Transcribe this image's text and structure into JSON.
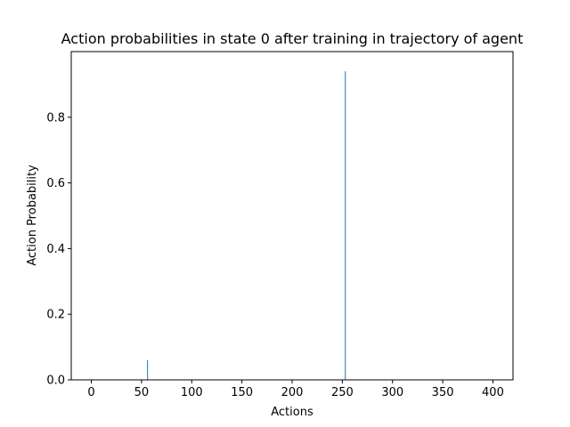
{
  "chart_data": {
    "type": "bar",
    "title": "Action probabilities in state 0 after training in trajectory of agent",
    "xlabel": "Actions",
    "ylabel": "Action Probability",
    "xlim": [
      -20,
      420
    ],
    "ylim": [
      0,
      1.0
    ],
    "x_ticks": [
      0,
      50,
      100,
      150,
      200,
      250,
      300,
      350,
      400
    ],
    "x_tick_labels": [
      "0",
      "50",
      "100",
      "150",
      "200",
      "250",
      "300",
      "350",
      "400"
    ],
    "y_ticks": [
      0.0,
      0.2,
      0.4,
      0.6,
      0.8
    ],
    "y_tick_labels": [
      "0.0",
      "0.2",
      "0.4",
      "0.6",
      "0.8"
    ],
    "grid": false,
    "legend": "none",
    "bar_color": "#1f77b4",
    "series": [
      {
        "x": [
          56,
          253
        ],
        "values": [
          0.06,
          0.94
        ]
      }
    ]
  }
}
